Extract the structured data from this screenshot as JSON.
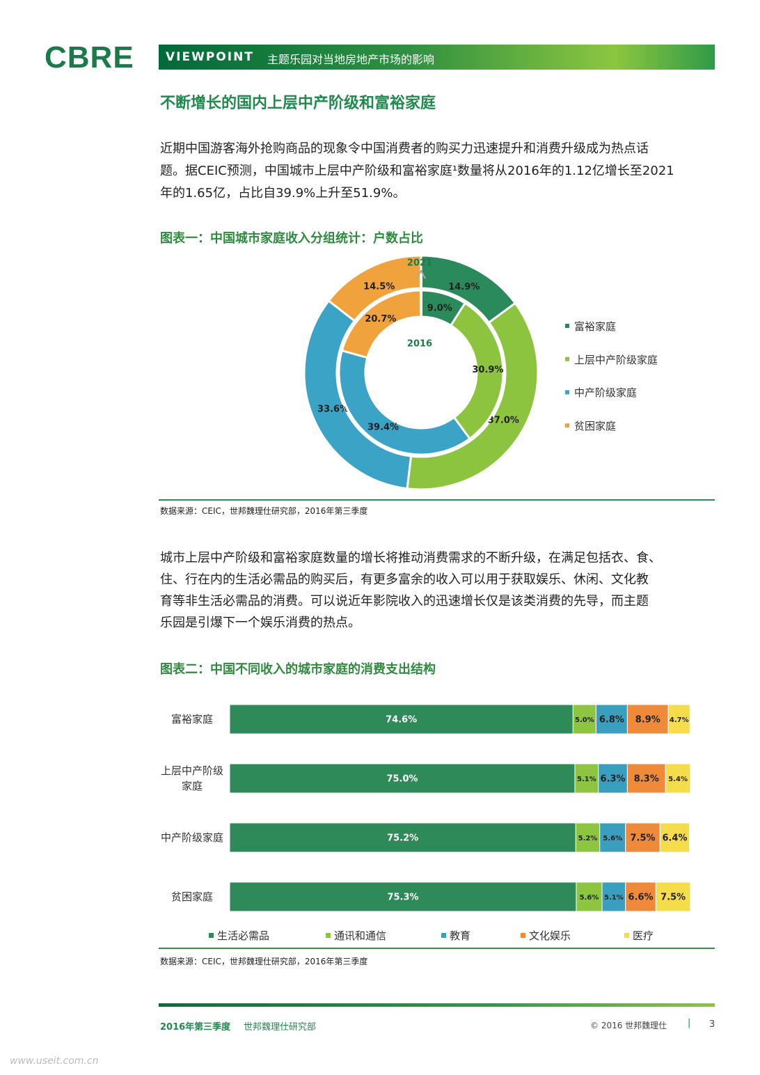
{
  "header": {
    "logo": "CBRE",
    "label": "VIEWPOINT",
    "title": "主题乐园对当地房地产市场的影响"
  },
  "section_title": "不断增长的国内上层中产阶级和富裕家庭",
  "intro": {
    "lines": [
      "近期中国游客海外抢购商品的现象令中国消费者的购买力迅速提升和消费升级成为热点话",
      "题。据CEIC预测，中国城市上层中产阶级和富裕家庭¹数量将从2016年的1.12亿增长至2021",
      "年的1.65亿，占比自39.9%上升至51.9%。"
    ]
  },
  "body": {
    "lines": [
      "城市上层中产阶级和富裕家庭数量的增长将推动消费需求的不断升级，在满足包括衣、食、",
      "住、行在内的生活必需品的购买后，有更多富余的收入可以用于获取娱乐、休闲、文化教",
      "育等非生活必需品的消费。可以说近年影院收入的迅速增长仅是该类消费的先导，而主题",
      "乐园是引爆下一个娱乐消费的热点。"
    ]
  },
  "chart_data": [
    {
      "type": "donut",
      "title": "图表一：中国城市家庭收入分组统计：户数占比",
      "categories": [
        "富裕家庭",
        "上层中产阶级家庭",
        "中产阶级家庭",
        "贫困家庭"
      ],
      "colors": [
        "#2a8a5c",
        "#8cc440",
        "#3aa3c6",
        "#f0a23c"
      ],
      "series": [
        {
          "name": "2021",
          "values": [
            14.9,
            37.0,
            33.6,
            14.5
          ],
          "value_labels": [
            "14.9%",
            "37.0%",
            "33.6%",
            "14.5%"
          ]
        },
        {
          "name": "2016",
          "values": [
            9.0,
            30.9,
            39.4,
            20.7
          ],
          "value_labels": [
            "9.0%",
            "30.9%",
            "39.4%",
            "20.7%"
          ]
        }
      ],
      "source": "数据来源：CEIC，世邦魏理仕研究部，2016年第三季度"
    },
    {
      "type": "bar",
      "orientation": "horizontal",
      "stacked": true,
      "title": "图表二：中国不同收入的城市家庭的消费支出结构",
      "categories": [
        "富裕家庭",
        "上层中产阶级家庭",
        "中产阶级家庭",
        "贫困家庭"
      ],
      "series": [
        {
          "name": "生活必需品",
          "color": "#2f8a5a",
          "values": [
            74.6,
            75.0,
            75.2,
            75.3
          ],
          "value_labels": [
            "74.6%",
            "75.0%",
            "75.2%",
            "75.3%"
          ]
        },
        {
          "name": "通讯和通信",
          "color": "#8dc440",
          "values": [
            5.0,
            5.1,
            5.2,
            5.6
          ],
          "value_labels": [
            "5.0%",
            "5.1%",
            "5.2%",
            "5.6%"
          ]
        },
        {
          "name": "教育",
          "color": "#3a9fbf",
          "values": [
            6.8,
            6.3,
            5.6,
            5.1
          ],
          "value_labels": [
            "6.8%",
            "6.3%",
            "5.6%",
            "5.1%"
          ]
        },
        {
          "name": "文化娱乐",
          "color": "#ef8a3a",
          "values": [
            8.9,
            8.3,
            7.5,
            6.6
          ],
          "value_labels": [
            "8.9%",
            "8.3%",
            "7.5%",
            "6.6%"
          ]
        },
        {
          "name": "医疗",
          "color": "#f5dc4a",
          "values": [
            4.7,
            5.4,
            6.4,
            7.5
          ],
          "value_labels": [
            "4.7%",
            "5.4%",
            "6.4%",
            "7.5%"
          ]
        }
      ],
      "source": "数据来源：CEIC，世邦魏理仕研究部，2016年第三季度"
    }
  ],
  "footer": {
    "period": "2016年第三季度",
    "dept": "世邦魏理仕研究部",
    "copyright": "© 2016 世邦魏理仕",
    "separator": "|",
    "page": "3"
  },
  "watermark": "www.useit.com.cn"
}
